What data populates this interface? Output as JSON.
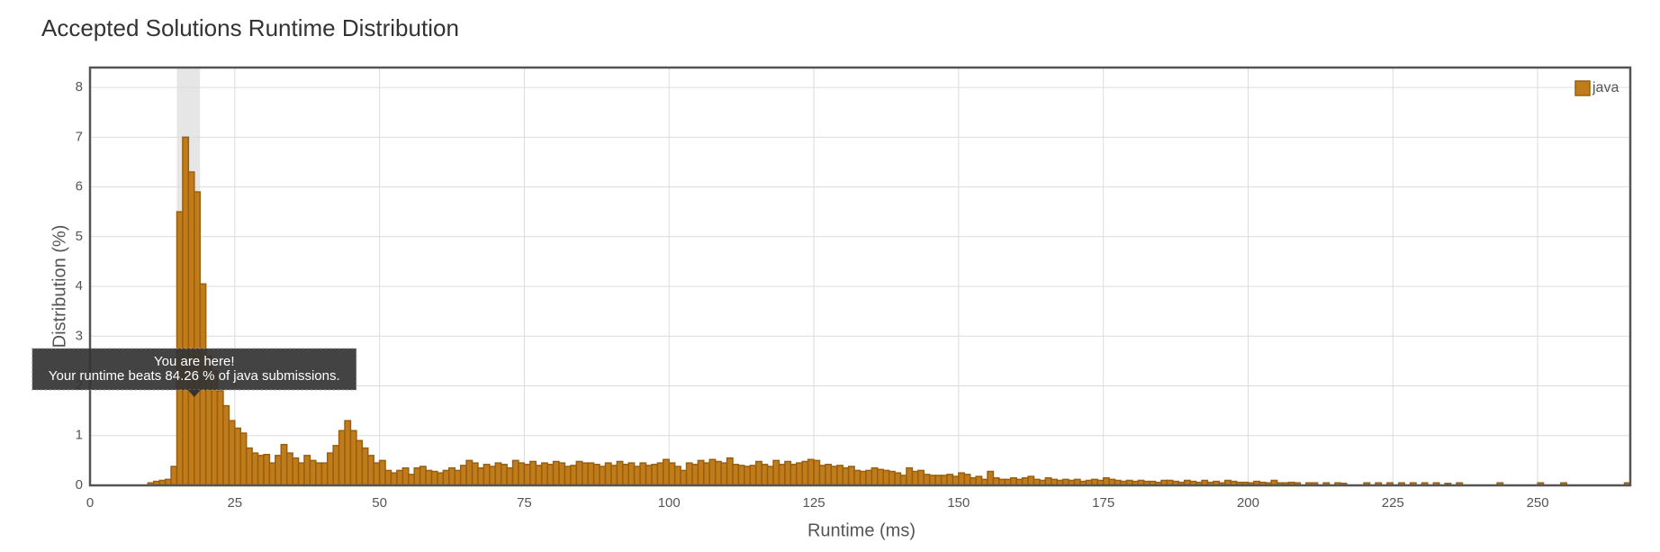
{
  "chart_data": {
    "type": "bar",
    "title": "Accepted Solutions Runtime Distribution",
    "x_label": "Runtime (ms)",
    "y_label": "Distribution (%)",
    "series": [
      {
        "name": "java",
        "color": "#c07b1b",
        "x": [
          10,
          11,
          12,
          13,
          14,
          15,
          16,
          17,
          18,
          19,
          20,
          21,
          22,
          23,
          24,
          25,
          26,
          27,
          28,
          29,
          30,
          31,
          32,
          33,
          34,
          35,
          36,
          37,
          38,
          39,
          40,
          41,
          42,
          43,
          44,
          45,
          46,
          47,
          48,
          49,
          50,
          51,
          52,
          53,
          54,
          55,
          56,
          57,
          58,
          59,
          60,
          61,
          62,
          63,
          64,
          65,
          66,
          67,
          68,
          69,
          70,
          71,
          72,
          73,
          74,
          75,
          76,
          77,
          78,
          79,
          80,
          81,
          82,
          83,
          84,
          85,
          86,
          87,
          88,
          89,
          90,
          91,
          92,
          93,
          94,
          95,
          96,
          97,
          98,
          99,
          100,
          101,
          102,
          103,
          104,
          105,
          106,
          107,
          108,
          109,
          110,
          111,
          112,
          113,
          114,
          115,
          116,
          117,
          118,
          119,
          120,
          121,
          122,
          123,
          124,
          125,
          126,
          127,
          128,
          129,
          130,
          131,
          132,
          133,
          134,
          135,
          136,
          137,
          138,
          139,
          140,
          141,
          142,
          143,
          144,
          145,
          146,
          147,
          148,
          149,
          150,
          151,
          152,
          153,
          154,
          155,
          156,
          157,
          158,
          159,
          160,
          161,
          162,
          163,
          164,
          165,
          166,
          167,
          168,
          169,
          170,
          171,
          172,
          173,
          174,
          175,
          176,
          177,
          178,
          179,
          180,
          181,
          182,
          183,
          184,
          185,
          186,
          187,
          188,
          189,
          190,
          191,
          192,
          193,
          194,
          195,
          196,
          197,
          198,
          199,
          200,
          201,
          202,
          203,
          204,
          205,
          206,
          207,
          208,
          210,
          211,
          213,
          215,
          216,
          220,
          222,
          224,
          226,
          228,
          230,
          232,
          234,
          236,
          243,
          250,
          254,
          265
        ],
        "values": [
          0.05,
          0.08,
          0.1,
          0.12,
          0.38,
          5.5,
          7.0,
          6.3,
          5.9,
          4.05,
          2.6,
          2.3,
          1.9,
          1.6,
          1.3,
          1.15,
          1.05,
          0.75,
          0.65,
          0.6,
          0.62,
          0.45,
          0.6,
          0.82,
          0.65,
          0.55,
          0.45,
          0.6,
          0.5,
          0.45,
          0.45,
          0.65,
          0.8,
          1.1,
          1.3,
          1.1,
          0.9,
          0.75,
          0.6,
          0.45,
          0.5,
          0.3,
          0.25,
          0.3,
          0.35,
          0.22,
          0.35,
          0.38,
          0.3,
          0.28,
          0.25,
          0.3,
          0.35,
          0.3,
          0.4,
          0.5,
          0.45,
          0.35,
          0.42,
          0.38,
          0.45,
          0.42,
          0.35,
          0.5,
          0.45,
          0.42,
          0.48,
          0.4,
          0.45,
          0.42,
          0.48,
          0.45,
          0.38,
          0.4,
          0.48,
          0.45,
          0.45,
          0.42,
          0.38,
          0.45,
          0.4,
          0.48,
          0.42,
          0.45,
          0.38,
          0.45,
          0.4,
          0.42,
          0.45,
          0.52,
          0.45,
          0.38,
          0.3,
          0.45,
          0.42,
          0.5,
          0.45,
          0.52,
          0.48,
          0.45,
          0.55,
          0.42,
          0.4,
          0.38,
          0.4,
          0.48,
          0.42,
          0.38,
          0.5,
          0.42,
          0.48,
          0.42,
          0.45,
          0.48,
          0.52,
          0.5,
          0.4,
          0.42,
          0.38,
          0.4,
          0.35,
          0.38,
          0.3,
          0.28,
          0.3,
          0.35,
          0.32,
          0.3,
          0.28,
          0.25,
          0.2,
          0.35,
          0.28,
          0.3,
          0.22,
          0.2,
          0.2,
          0.2,
          0.22,
          0.18,
          0.25,
          0.22,
          0.15,
          0.18,
          0.12,
          0.28,
          0.15,
          0.12,
          0.12,
          0.15,
          0.12,
          0.15,
          0.18,
          0.12,
          0.1,
          0.15,
          0.12,
          0.1,
          0.12,
          0.1,
          0.12,
          0.08,
          0.1,
          0.12,
          0.1,
          0.15,
          0.12,
          0.1,
          0.08,
          0.1,
          0.08,
          0.1,
          0.08,
          0.08,
          0.06,
          0.1,
          0.1,
          0.08,
          0.06,
          0.1,
          0.08,
          0.06,
          0.1,
          0.06,
          0.08,
          0.05,
          0.1,
          0.08,
          0.06,
          0.06,
          0.05,
          0.08,
          0.06,
          0.05,
          0.1,
          0.05,
          0.05,
          0.06,
          0.05,
          0.05,
          0.05,
          0.05,
          0.05,
          0.04,
          0.05,
          0.05,
          0.05,
          0.05,
          0.05,
          0.05,
          0.05,
          0.04,
          0.05,
          0.05,
          0.05,
          0.05,
          0.05
        ]
      }
    ],
    "xlim": [
      0,
      266
    ],
    "ylim": [
      0,
      8.4
    ],
    "xticks": [
      0,
      25,
      50,
      75,
      100,
      125,
      150,
      175,
      200,
      225,
      250
    ],
    "yticks": [
      0,
      1,
      2,
      3,
      4,
      5,
      6,
      7,
      8
    ],
    "grid": true,
    "legend": "top-right",
    "highlight": [
      15,
      19
    ],
    "annotation": {
      "x": 18,
      "title": "You are here!",
      "text": "Your runtime beats 84.26 % of java submissions."
    }
  }
}
